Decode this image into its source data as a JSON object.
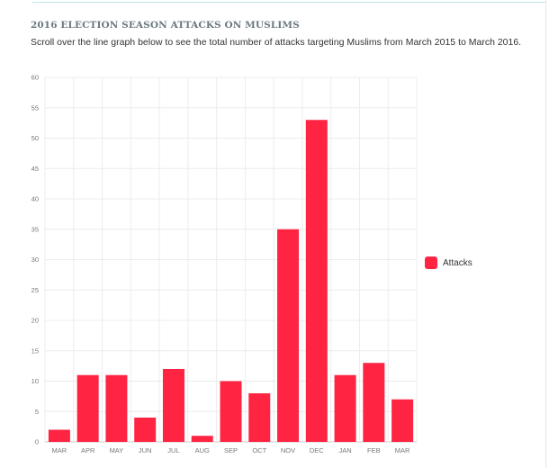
{
  "header": {
    "title": "2016 ELECTION SEASON ATTACKS ON MUSLIMS",
    "subtitle": "Scroll over the line graph below to see the total number of attacks targeting Muslims from March 2015 to March 2016."
  },
  "colors": {
    "bar": "#ff2442",
    "grid": "#ececec",
    "axis": "#cccccc"
  },
  "chart_data": {
    "type": "bar",
    "categories": [
      "MAR",
      "APR",
      "MAY",
      "JUN",
      "JUL",
      "AUG",
      "SEP",
      "OCT",
      "NOV",
      "DEC",
      "JAN",
      "FEB",
      "MAR"
    ],
    "series": [
      {
        "name": "Attacks",
        "values": [
          2,
          11,
          11,
          4,
          12,
          1,
          10,
          8,
          35,
          53,
          11,
          13,
          7
        ]
      }
    ],
    "ylim": [
      0,
      60
    ],
    "yticks": [
      0,
      5,
      10,
      15,
      20,
      25,
      30,
      35,
      40,
      45,
      50,
      55,
      60
    ],
    "grid": true,
    "legend": "right"
  }
}
